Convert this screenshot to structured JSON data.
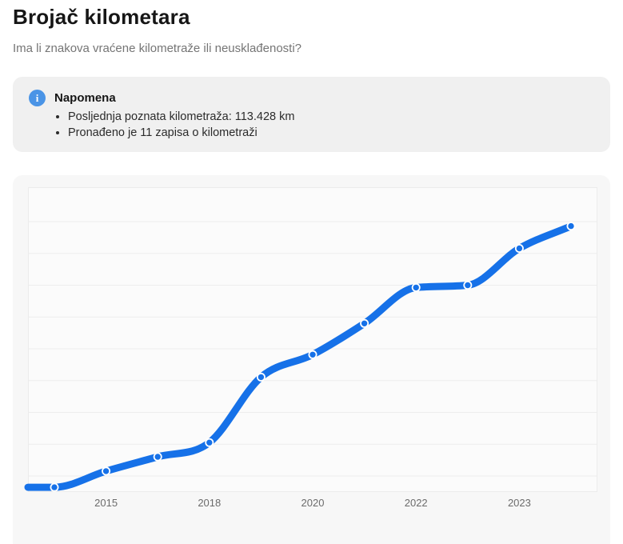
{
  "page": {
    "title": "Brojač kilometara",
    "subtitle": "Ima li znakova vraćene kilometraže ili neusklađenosti?"
  },
  "note": {
    "icon": "info-icon",
    "icon_glyph": "i",
    "heading": "Napomena",
    "items": [
      "Posljednja poznata kilometraža: 113.428 km",
      "Pronađeno je 11 zapisa o kilometraži"
    ]
  },
  "chart_data": {
    "type": "line",
    "title": "",
    "xlabel": "",
    "ylabel": "",
    "unit": "km",
    "record_count": 11,
    "last_known_km": 113428,
    "values": [
      2000,
      8900,
      15000,
      21100,
      49000,
      58600,
      71900,
      87200,
      88200,
      103900,
      113428
    ],
    "x_ticks": [
      {
        "point_index": 1,
        "label": "2015"
      },
      {
        "point_index": 3,
        "label": "2018"
      },
      {
        "point_index": 5,
        "label": "2020"
      },
      {
        "point_index": 7,
        "label": "2022"
      },
      {
        "point_index": 9,
        "label": "2023"
      }
    ],
    "ylim": [
      0,
      130000
    ],
    "grid": "horizontal",
    "legend": "none",
    "smoothing": "monotone",
    "line_starts_at_left_edge": true,
    "marker": "circle-white-stroke",
    "line_color": "#1671e8"
  },
  "colors": {
    "accent_blue": "#1671e8",
    "info_icon_blue": "#4a94e6",
    "note_bg": "#f0f0f0",
    "chart_card_bg": "#f7f7f7",
    "plot_bg": "#fbfbfb",
    "plot_border": "#ececec",
    "gridline": "#ededed",
    "axis_label": "#6b6b6b"
  }
}
